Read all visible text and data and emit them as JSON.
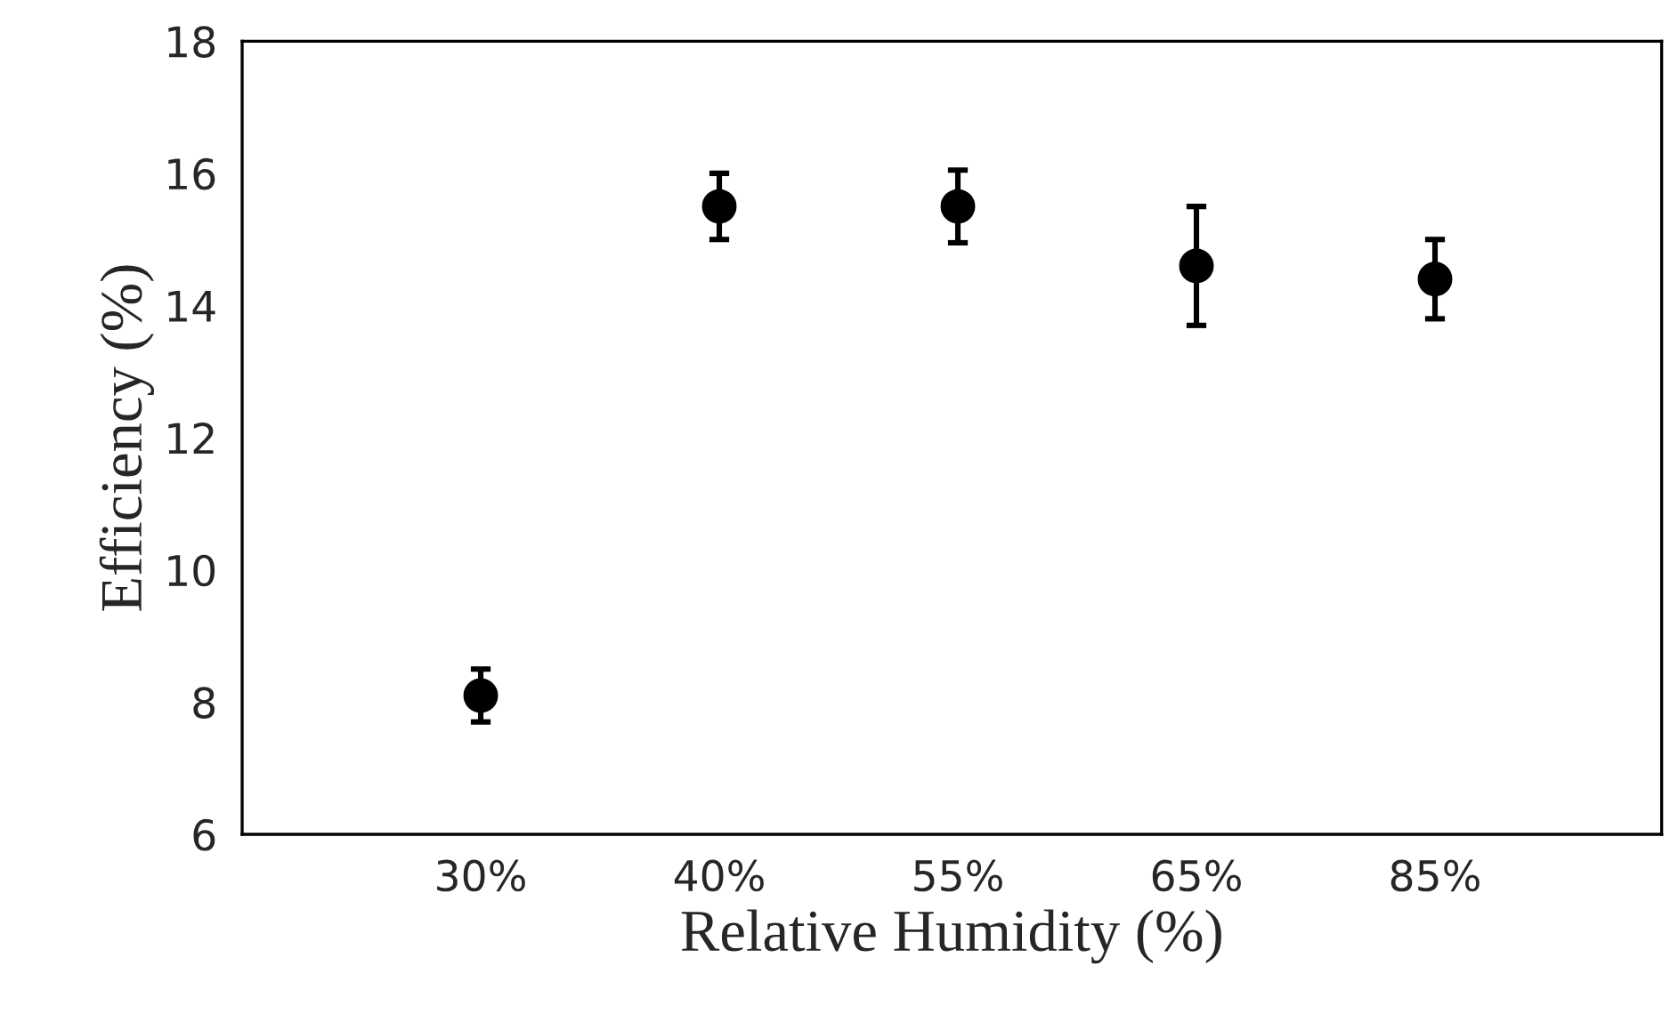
{
  "chart_data": {
    "type": "scatter",
    "xlabel": "Relative Humidity (%)",
    "ylabel": "Efficiency (%)",
    "categories": [
      "30%",
      "40%",
      "55%",
      "65%",
      "85%"
    ],
    "values": [
      8.1,
      15.5,
      15.5,
      14.6,
      14.4
    ],
    "errors": [
      0.4,
      0.5,
      0.55,
      0.9,
      0.6
    ],
    "color": "#000000",
    "marker": "circle",
    "ylim": [
      6,
      18
    ],
    "yticks": [
      6,
      8,
      10,
      12,
      14,
      16,
      18
    ],
    "grid": false,
    "legend": false
  }
}
